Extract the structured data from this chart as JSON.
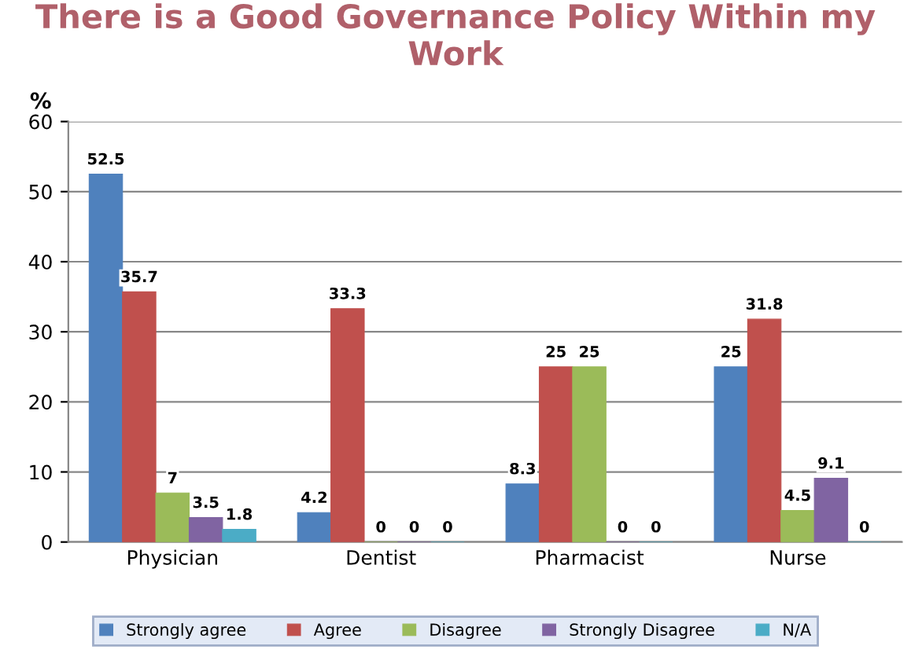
{
  "chart_data": {
    "type": "bar",
    "title": "There is a Good Governance Policy Within my Work",
    "ylabel": "%",
    "categories": [
      "Physician",
      "Dentist",
      "Pharmacist",
      "Nurse"
    ],
    "series": [
      {
        "name": "Strongly agree",
        "color": "#4f81bd",
        "values": [
          52.5,
          4.2,
          8.3,
          25
        ]
      },
      {
        "name": "Agree",
        "color": "#c0504d",
        "values": [
          35.7,
          33.3,
          25,
          31.8
        ]
      },
      {
        "name": "Disagree",
        "color": "#9bbb59",
        "values": [
          7,
          0,
          25,
          4.5
        ]
      },
      {
        "name": "Strongly Disagree",
        "color": "#8064a2",
        "values": [
          3.5,
          0,
          0,
          9.1
        ]
      },
      {
        "name": "N/A",
        "color": "#4bacc6",
        "values": [
          1.8,
          0,
          0,
          0
        ]
      }
    ],
    "ylim": [
      0,
      60
    ],
    "yticks": [
      0,
      10,
      20,
      30,
      40,
      50,
      60
    ],
    "grid": "y",
    "legend": "bottom",
    "data_labels": true
  }
}
